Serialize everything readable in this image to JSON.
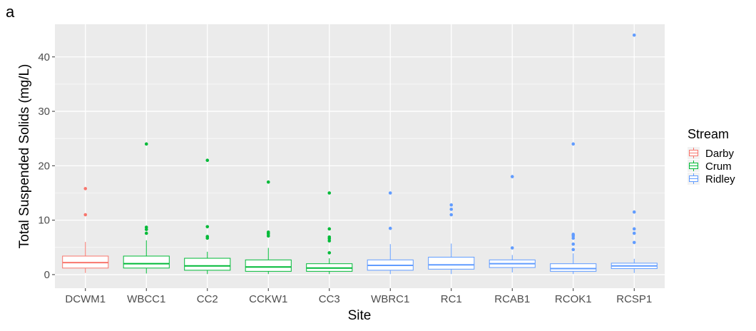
{
  "panel_label": "a",
  "chart_data": {
    "type": "boxplot",
    "xlabel": "Site",
    "ylabel": "Total Suspended Solids (mg/L)",
    "ylim": [
      -2.5,
      46
    ],
    "yticks": [
      0,
      10,
      20,
      30,
      40
    ],
    "grid": true,
    "legend": {
      "title": "Stream",
      "position": "right",
      "entries": [
        {
          "name": "Darby",
          "color": "#F8766D"
        },
        {
          "name": "Crum",
          "color": "#00BA38"
        },
        {
          "name": "Ridley",
          "color": "#619CFF"
        }
      ]
    },
    "categories": [
      "DCWM1",
      "WBCC1",
      "CC2",
      "CCKW1",
      "CC3",
      "WBRC1",
      "RC1",
      "RCAB1",
      "RCOK1",
      "RCSP1"
    ],
    "boxes": [
      {
        "site": "DCWM1",
        "stream": "Darby",
        "min": 0.3,
        "q1": 1.2,
        "median": 2.2,
        "q3": 3.4,
        "max": 6.0,
        "outliers": [
          11,
          15.8
        ]
      },
      {
        "site": "WBCC1",
        "stream": "Crum",
        "min": 0.2,
        "q1": 1.2,
        "median": 2.0,
        "q3": 3.4,
        "max": 6.3,
        "outliers": [
          7.6,
          8.3,
          8.7,
          24
        ]
      },
      {
        "site": "CC2",
        "stream": "Crum",
        "min": 0.1,
        "q1": 0.8,
        "median": 1.6,
        "q3": 3.0,
        "max": 4.2,
        "outliers": [
          6.7,
          7.0,
          8.8,
          21
        ]
      },
      {
        "site": "CCKW1",
        "stream": "Crum",
        "min": 0.1,
        "q1": 0.6,
        "median": 1.4,
        "q3": 2.7,
        "max": 4.9,
        "outliers": [
          7.1,
          7.5,
          7.8,
          17
        ]
      },
      {
        "site": "CC3",
        "stream": "Crum",
        "min": 0.1,
        "q1": 0.6,
        "median": 1.2,
        "q3": 2.0,
        "max": 3.0,
        "outliers": [
          4.0,
          6.2,
          6.6,
          6.9,
          8.4,
          15
        ]
      },
      {
        "site": "WBRC1",
        "stream": "Ridley",
        "min": 0.1,
        "q1": 0.8,
        "median": 1.7,
        "q3": 2.7,
        "max": 5.6,
        "outliers": [
          8.5,
          15
        ]
      },
      {
        "site": "RC1",
        "stream": "Ridley",
        "min": 0.1,
        "q1": 1.0,
        "median": 1.8,
        "q3": 3.2,
        "max": 5.7,
        "outliers": [
          11,
          12,
          12.8
        ]
      },
      {
        "site": "RCAB1",
        "stream": "Ridley",
        "min": 0.4,
        "q1": 1.3,
        "median": 2.0,
        "q3": 2.7,
        "max": 3.6,
        "outliers": [
          4.9,
          18
        ]
      },
      {
        "site": "RCOK1",
        "stream": "Ridley",
        "min": 0.1,
        "q1": 0.6,
        "median": 1.1,
        "q3": 2.0,
        "max": 3.9,
        "outliers": [
          4.6,
          5.6,
          6.7,
          7.1,
          7.4,
          24
        ]
      },
      {
        "site": "RCSP1",
        "stream": "Ridley",
        "min": 0.3,
        "q1": 1.1,
        "median": 1.6,
        "q3": 2.1,
        "max": 2.9,
        "outliers": [
          5.9,
          7.6,
          8.4,
          11.5,
          44
        ]
      }
    ]
  }
}
